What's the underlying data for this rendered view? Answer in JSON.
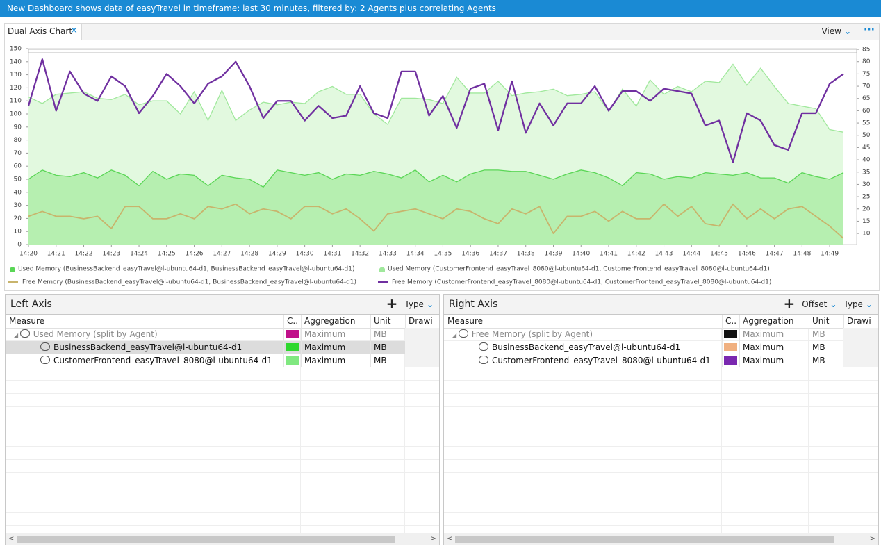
{
  "header": {
    "title": "New Dashboard shows data of easyTravel in timeframe: last 30 minutes, filtered by: 2 Agents plus correlating Agents"
  },
  "tab": {
    "title": "Dual Axis Chart",
    "view": "View"
  },
  "chart_data": {
    "type": "line",
    "categories": [
      "14:20",
      null,
      "14:21",
      null,
      "14:22",
      null,
      "14:23",
      null,
      "14:24",
      null,
      "14:25",
      null,
      "14:26",
      null,
      "14:27",
      null,
      "14:28",
      null,
      "14:29",
      null,
      "14:30",
      null,
      "14:31",
      null,
      "14:32",
      null,
      "14:33",
      null,
      "14:34",
      null,
      "14:35",
      null,
      "14:36",
      null,
      "14:37",
      null,
      "14:38",
      null,
      "14:39",
      null,
      "14:40",
      null,
      "14:41",
      null,
      "14:42",
      null,
      "14:43",
      null,
      "14:44",
      null,
      "14:45",
      null,
      "14:46",
      null,
      "14:47",
      null,
      "14:48",
      null,
      "14:49",
      null
    ],
    "series": [
      {
        "name": "Used Memory (BusinessBackend_easyTravel@l-ubuntu64-d1, BusinessBackend_easyTravel@l-ubuntu64-d1)",
        "type": "area",
        "color": "#5ad656",
        "fill": "#b6efb0",
        "values": [
          50,
          57,
          53,
          52,
          55,
          51,
          57,
          53,
          45,
          56,
          50,
          54,
          53,
          45,
          53,
          51,
          50,
          44,
          57,
          55,
          53,
          55,
          50,
          54,
          53,
          56,
          54,
          51,
          57,
          48,
          53,
          48,
          54,
          57,
          57,
          56,
          56,
          53,
          50,
          54,
          57,
          55,
          51,
          45,
          55,
          54,
          50,
          52,
          51,
          55,
          54,
          53,
          55,
          51,
          51,
          47,
          55,
          52,
          50,
          55
        ]
      },
      {
        "name": "Used Memory (CustomerFrontend_easyTravel_8080@l-ubuntu64-d1, CustomerFrontend_easyTravel_8080@l-ubuntu64-d1)",
        "type": "area",
        "color": "#a0e89c",
        "fill": "#e2f9df",
        "values": [
          113,
          108,
          115,
          116,
          117,
          112,
          111,
          115,
          107,
          110,
          110,
          100,
          117,
          95,
          118,
          95,
          103,
          109,
          107,
          109,
          108,
          117,
          121,
          115,
          115,
          100,
          92,
          112,
          112,
          111,
          108,
          128,
          116,
          116,
          125,
          114,
          116,
          117,
          119,
          114,
          115,
          117,
          102,
          119,
          106,
          126,
          115,
          121,
          117,
          125,
          124,
          138,
          122,
          135,
          121,
          108,
          106,
          104,
          88,
          86
        ]
      },
      {
        "name": "Free Memory (BusinessBackend_easyTravel@l-ubuntu64-d1, BusinessBackend_easyTravel@l-ubuntu64-d1)",
        "type": "line",
        "axis": "y2",
        "color": "#c8b46c",
        "values": [
          17,
          19,
          17,
          17,
          16,
          17,
          12,
          21,
          21,
          16,
          16,
          18,
          16,
          21,
          20,
          22,
          18,
          20,
          19,
          16,
          21,
          21,
          18,
          20,
          16,
          11,
          18,
          19,
          20,
          18,
          16,
          20,
          19,
          16,
          14,
          20,
          18,
          21,
          10,
          17,
          17,
          19,
          15,
          19,
          16,
          16,
          22,
          17,
          21,
          14,
          13,
          22,
          16,
          20,
          16,
          20,
          21,
          17,
          13,
          8
        ]
      },
      {
        "name": "Free Memory (CustomerFrontend_easyTravel_8080@l-ubuntu64-d1, CustomerFrontend_easyTravel_8080@l-ubuntu64-d1)",
        "type": "line",
        "axis": "y2",
        "color": "#7030a0",
        "values": [
          62,
          81,
          60,
          76,
          67,
          64,
          74,
          70,
          59,
          66,
          75,
          70,
          63,
          71,
          74,
          80,
          70,
          57,
          64,
          64,
          56,
          62,
          57,
          58,
          70,
          59,
          57,
          76,
          76,
          58,
          66,
          53,
          69,
          71,
          52,
          72,
          51,
          63,
          54,
          63,
          63,
          70,
          60,
          68,
          68,
          64,
          69,
          68,
          67,
          54,
          56,
          39,
          59,
          56,
          46,
          44,
          59,
          59,
          71,
          75
        ]
      }
    ],
    "ylim": [
      0,
      150
    ],
    "yticks": [
      0,
      10,
      20,
      30,
      40,
      50,
      60,
      70,
      80,
      90,
      100,
      110,
      120,
      130,
      140,
      150
    ],
    "y2lim": [
      5.5,
      85.3
    ],
    "y2ticks": [
      10,
      15,
      20,
      25,
      30,
      35,
      40,
      45,
      50,
      55,
      60,
      65,
      70,
      75,
      80,
      85
    ],
    "legend": "bottom"
  },
  "left_panel": {
    "title": "Left Axis",
    "buttons": [
      "Type"
    ],
    "columns": [
      "Measure",
      "C..",
      "Aggregation",
      "Unit",
      "Drawi"
    ],
    "rows": [
      {
        "measure": "Used Memory (split by Agent)",
        "color": "#c0108a",
        "aggregation": "Maximum",
        "unit": "MB",
        "group": true
      },
      {
        "measure": "BusinessBackend_easyTravel@l-ubuntu64-d1",
        "color": "#2ed82e",
        "aggregation": "Maximum",
        "unit": "MB",
        "selected": true
      },
      {
        "measure": "CustomerFrontend_easyTravel_8080@l-ubuntu64-d1",
        "color": "#80e880",
        "aggregation": "Maximum",
        "unit": "MB"
      }
    ]
  },
  "right_panel": {
    "title": "Right Axis",
    "buttons": [
      "Offset",
      "Type"
    ],
    "columns": [
      "Measure",
      "C..",
      "Aggregation",
      "Unit",
      "Drawi"
    ],
    "rows": [
      {
        "measure": "Free Memory (split by Agent)",
        "color": "#111111",
        "aggregation": "Maximum",
        "unit": "MB",
        "group": true
      },
      {
        "measure": "BusinessBackend_easyTravel@l-ubuntu64-d1",
        "color": "#f0b080",
        "aggregation": "Maximum",
        "unit": "MB"
      },
      {
        "measure": "CustomerFrontend_easyTravel_8080@l-ubuntu64-d1",
        "color": "#7a28b0",
        "aggregation": "Maximum",
        "unit": "MB"
      }
    ]
  }
}
